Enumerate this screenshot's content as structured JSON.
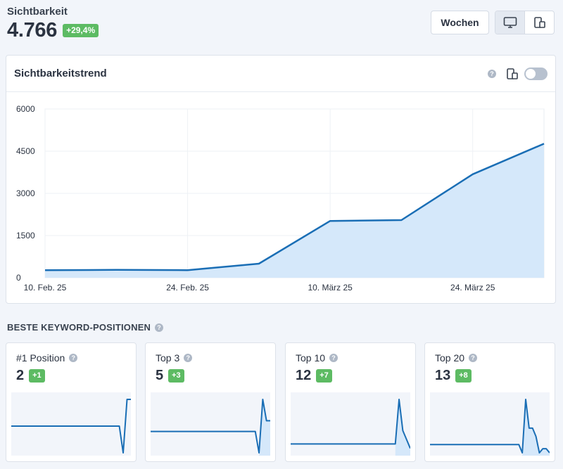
{
  "header": {
    "title": "Sichtbarkeit",
    "value": "4.766",
    "change": "+29,4%",
    "period_button": "Wochen"
  },
  "device_toggle": {
    "items": [
      {
        "icon": "desktop-icon",
        "active": true
      },
      {
        "icon": "mobile-icon",
        "active": false
      }
    ]
  },
  "trend": {
    "title": "Sichtbarkeitstrend",
    "help": "?",
    "toggle_on": false
  },
  "chart_data": {
    "type": "area",
    "x": [
      "10. Feb. 25",
      "17. Feb. 25",
      "24. Feb. 25",
      "03. März 25",
      "10. März 25",
      "17. März 25",
      "24. März 25",
      "31. März 25"
    ],
    "values": [
      270,
      280,
      270,
      500,
      2020,
      2050,
      3680,
      4766
    ],
    "xticks": [
      "10. Feb. 25",
      "24. Feb. 25",
      "10. März 25",
      "24. März 25"
    ],
    "yticks": [
      "0",
      "1500",
      "3000",
      "4500",
      "6000"
    ],
    "ylim": [
      0,
      6000
    ],
    "line_color": "#1a6eb5",
    "fill_color": "#d5e8fa"
  },
  "keywords": {
    "section_title": "BESTE KEYWORD-POSITIONEN",
    "help": "?",
    "cards": [
      {
        "label": "#1 Position",
        "value": "2",
        "change": "+1",
        "help": "?",
        "series": [
          1,
          1,
          1,
          1,
          1,
          1,
          1,
          1,
          1,
          1,
          1,
          1,
          1,
          1,
          1,
          1,
          1,
          1,
          1,
          1,
          1,
          1,
          1,
          1,
          1,
          1,
          1,
          1,
          1,
          0,
          2,
          2
        ]
      },
      {
        "label": "Top 3",
        "value": "5",
        "change": "+3",
        "help": "?",
        "series": [
          2,
          2,
          2,
          2,
          2,
          2,
          2,
          2,
          2,
          2,
          2,
          2,
          2,
          2,
          2,
          2,
          2,
          2,
          2,
          2,
          2,
          2,
          2,
          2,
          2,
          2,
          2,
          2,
          2,
          0,
          5,
          3,
          3
        ]
      },
      {
        "label": "Top 10",
        "value": "12",
        "change": "+7",
        "help": "?",
        "series": [
          2,
          2,
          2,
          2,
          2,
          2,
          2,
          2,
          2,
          2,
          2,
          2,
          2,
          2,
          2,
          2,
          2,
          2,
          2,
          2,
          2,
          2,
          2,
          2,
          2,
          2,
          2,
          2,
          2,
          12,
          5,
          3,
          1
        ]
      },
      {
        "label": "Top 20",
        "value": "13",
        "change": "+8",
        "help": "?",
        "series": [
          2,
          2,
          2,
          2,
          2,
          2,
          2,
          2,
          2,
          2,
          2,
          2,
          2,
          2,
          2,
          2,
          2,
          2,
          2,
          2,
          2,
          2,
          2,
          2,
          2,
          2,
          2,
          0,
          13,
          6,
          6,
          4,
          0,
          1,
          1,
          0
        ]
      }
    ]
  }
}
